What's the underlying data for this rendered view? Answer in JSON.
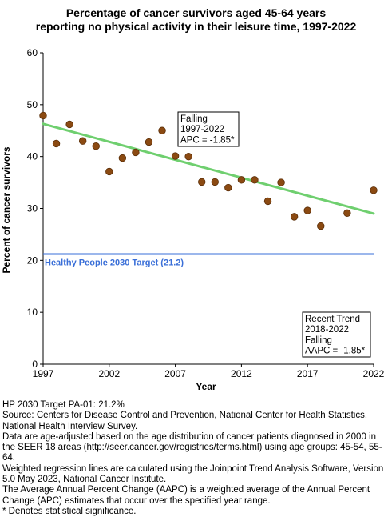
{
  "title_line1": "Percentage of cancer survivors aged 45-64 years",
  "title_line2": "reporting no physical activity in their leisure time, 1997-2022",
  "footnotes": [
    "HP 2030 Target PA-01: 21.2%",
    "Source: Centers for Disease Control and Prevention, National Center for Health Statistics. National Health Interview Survey.",
    "Data are age-adjusted based on the age distribution of cancer patients diagnosed in 2000 in the SEER 18 areas (http://seer.cancer.gov/registries/terms.html) using age groups: 45-54, 55-64.",
    "Weighted regression lines are calculated using the Joinpoint Trend Analysis Software, Version 5.0 May 2023, National Cancer Institute.",
    "The Average Annual Percent Change (AAPC) is a weighted average of the Annual Percent Change (APC) estimates that occur over the specified year range.",
    "* Denotes statistical significance."
  ],
  "chart_data": {
    "type": "scatter",
    "title": "Percentage of cancer survivors aged 45-64 years reporting no physical activity in their leisure time, 1997-2022",
    "xlabel": "Year",
    "ylabel": "Percent of cancer survivors",
    "xlim": [
      1997,
      2022
    ],
    "ylim": [
      0,
      60
    ],
    "x_ticks": [
      "1997",
      "2002",
      "2007",
      "2012",
      "2017",
      "2022"
    ],
    "y_ticks": [
      "0",
      "10",
      "20",
      "30",
      "40",
      "50",
      "60"
    ],
    "grid": false,
    "points": {
      "x": [
        1997,
        1998,
        1999,
        2000,
        2001,
        2002,
        2003,
        2004,
        2005,
        2006,
        2007,
        2008,
        2009,
        2010,
        2011,
        2012,
        2013,
        2014,
        2015,
        2016,
        2017,
        2018,
        2020,
        2022
      ],
      "y": [
        47.9,
        42.5,
        46.2,
        43.0,
        42.0,
        37.1,
        39.7,
        40.8,
        42.8,
        45.0,
        40.1,
        40.0,
        35.1,
        35.1,
        34.0,
        35.5,
        35.5,
        31.4,
        35.0,
        28.4,
        29.6,
        26.6,
        29.1,
        33.5
      ],
      "color": "#8b4a12"
    },
    "trend": {
      "x_start": 1997,
      "y_start": 46.3,
      "x_end": 2022,
      "y_end": 29.0,
      "color": "#6fcf6f"
    },
    "target": {
      "value": 21.2,
      "label": "Healthy People 2030 Target (21.2)",
      "color": "#3a6fd8"
    },
    "annotations": [
      {
        "lines": [
          "Falling",
          "1997-2022",
          "APC = -1.85*"
        ]
      },
      {
        "lines": [
          "Recent Trend",
          "2018-2022",
          "Falling",
          "AAPC = -1.85*"
        ]
      }
    ]
  }
}
